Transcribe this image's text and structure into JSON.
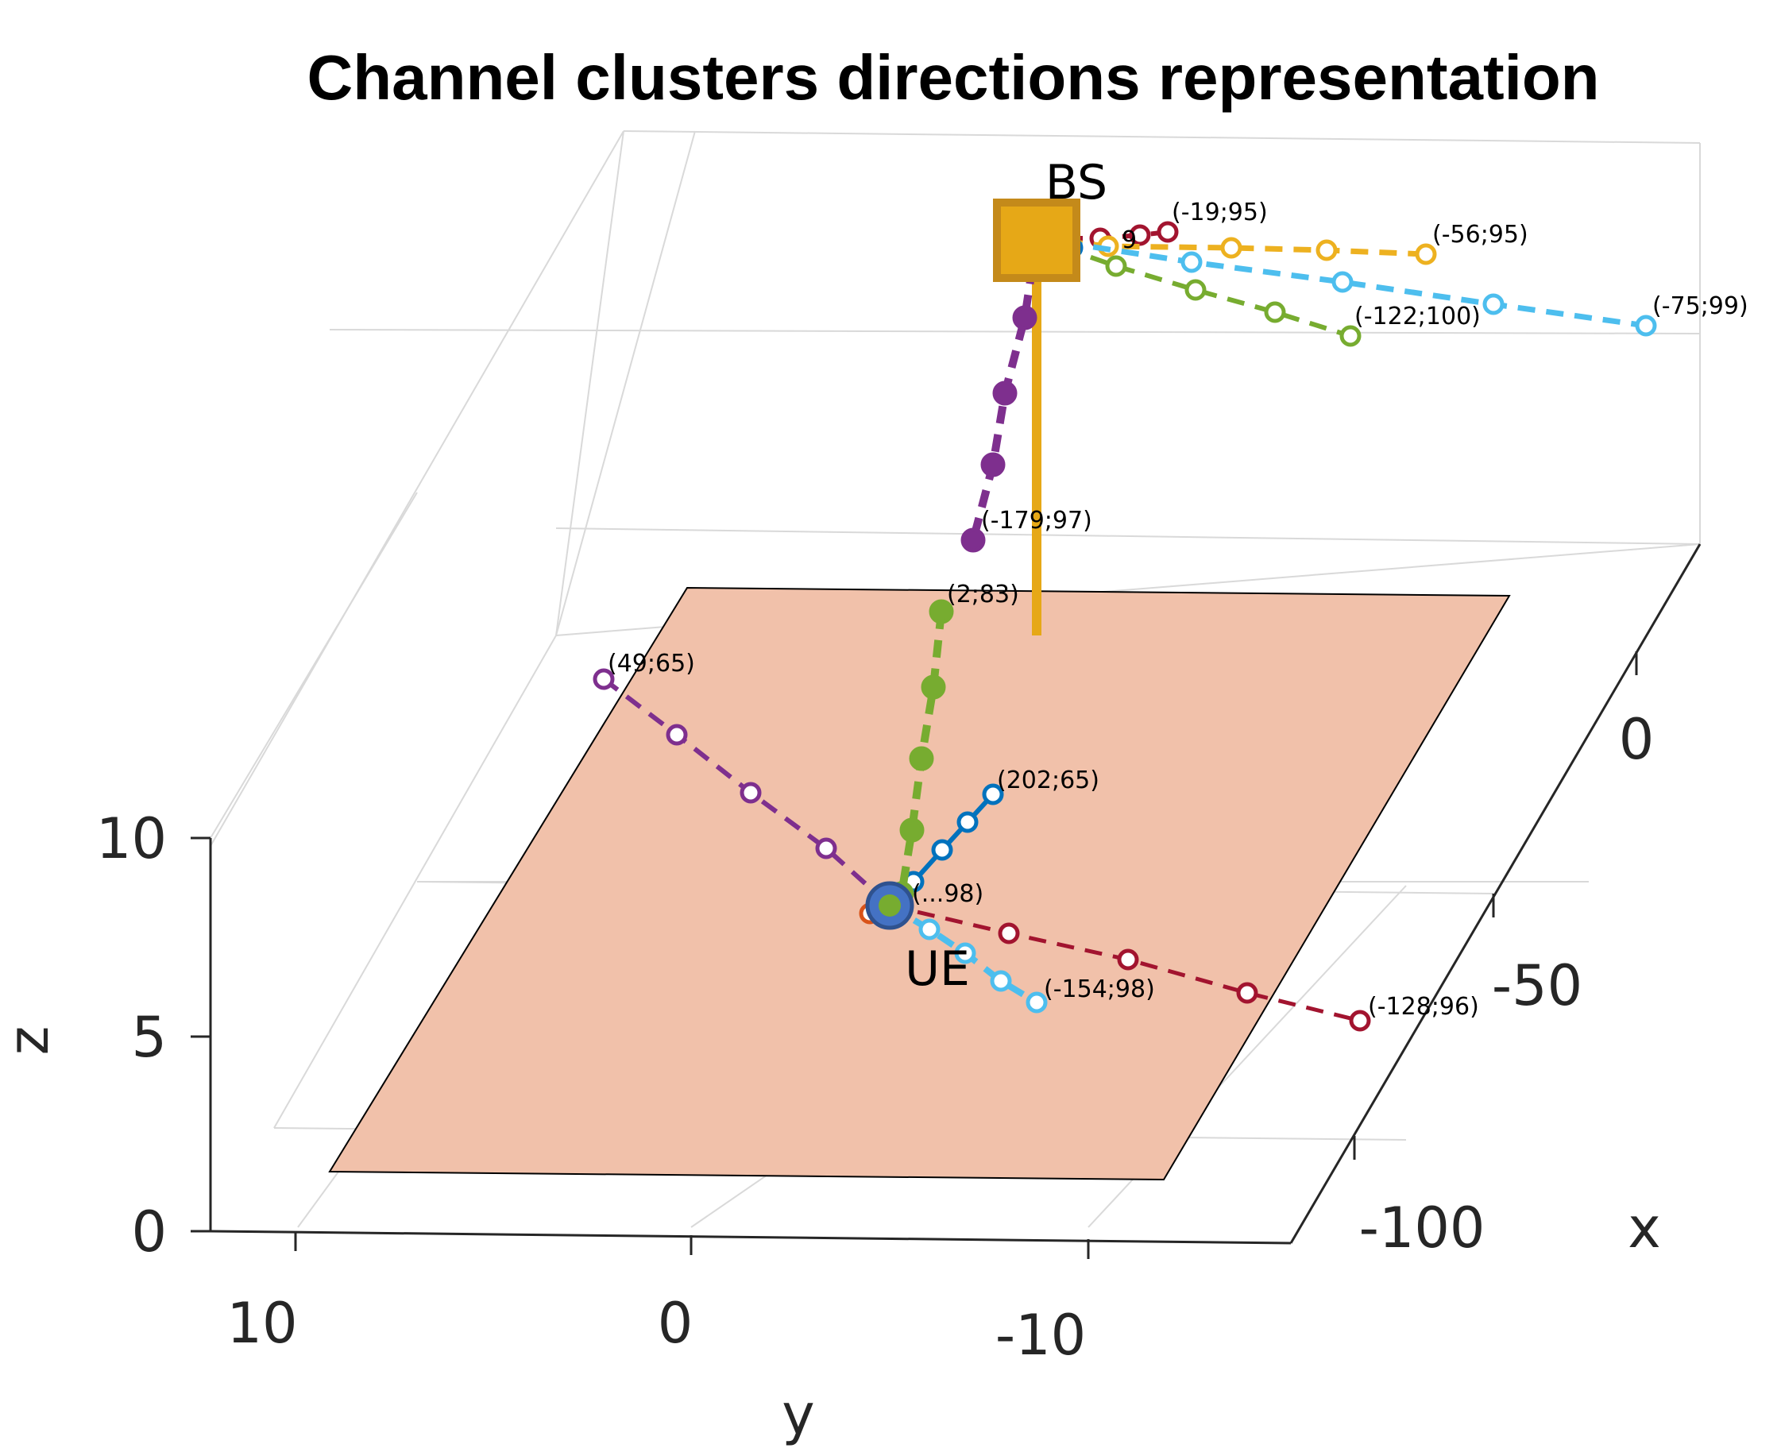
{
  "chart_data": {
    "type": "scatter3d",
    "title": "Channel clusters directions representation",
    "xlabel": "x",
    "ylabel": "y",
    "zlabel": "z",
    "x_ticks": [
      "0",
      "-50",
      "-100"
    ],
    "y_ticks": [
      "10",
      "0",
      "-10"
    ],
    "z_ticks": [
      "0",
      "5",
      "10"
    ],
    "xlim": [
      -120,
      20
    ],
    "ylim": [
      -15,
      12
    ],
    "zlim": [
      0,
      20
    ],
    "nodes": {
      "bs": {
        "label": "BS",
        "color": "#e6a817"
      },
      "ue": {
        "label": "UE",
        "color": "#4472c4"
      }
    },
    "ground_plane_color": "#f1c1aa",
    "clusters": [
      {
        "name": "UE cluster purple",
        "color": "#7e2f8e",
        "end": "UE",
        "annotation": "(49;65)"
      },
      {
        "name": "UE cluster blue",
        "color": "#0072bd",
        "end": "UE",
        "annotation": "(202;65)"
      },
      {
        "name": "UE cluster dark red",
        "color": "#a2142f",
        "end": "UE",
        "annotation": "(-128;96)"
      },
      {
        "name": "UE cluster light blue",
        "color": "#4dbeee",
        "end": "UE",
        "annotation": "(-154;98)"
      },
      {
        "name": "UE cluster orange",
        "color": "#d95319",
        "end": "UE",
        "annotation": "(...98)"
      },
      {
        "name": "LOS green",
        "color": "#77ac30",
        "end": "UE",
        "annotation": "(2;83)"
      },
      {
        "name": "LOS purple",
        "color": "#7e2f8e",
        "end": "BS",
        "annotation": "(-179;97)"
      },
      {
        "name": "BS cluster dark red",
        "color": "#a2142f",
        "end": "BS",
        "annotation": "(-19;95)"
      },
      {
        "name": "BS cluster orange",
        "color": "#edb120",
        "end": "BS",
        "annotation": "(-56;95)"
      },
      {
        "name": "BS cluster light blue",
        "color": "#4dbeee",
        "end": "BS",
        "annotation": "(-75;99)"
      },
      {
        "name": "BS cluster green",
        "color": "#77ac30",
        "end": "BS",
        "annotation": "(-122;100)"
      },
      {
        "name": "BS partial label",
        "color": "#0072bd",
        "end": "BS",
        "annotation": "9"
      }
    ]
  }
}
